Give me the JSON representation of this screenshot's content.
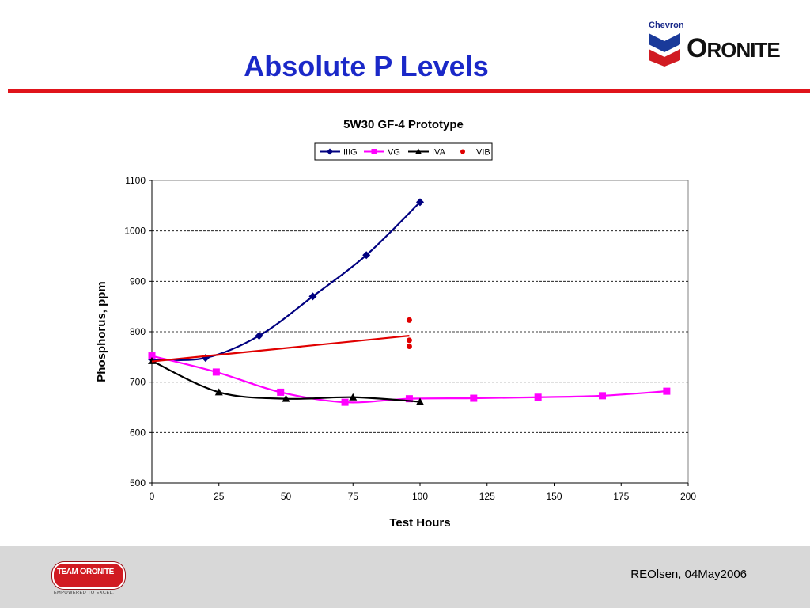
{
  "slide": {
    "title": "Absolute P Levels",
    "footer_credit": "REOlsen, 04May2006"
  },
  "logos": {
    "chevron_word": "Chevron",
    "oronite_first": "O",
    "oronite_rest": "RONITE",
    "team_first": "TEAM",
    "team_second_first": "O",
    "team_second_rest": "RONITE",
    "team_tagline": "EMPOWERED TO EXCEL.",
    "chevron_colors": [
      "#1a3a9a",
      "#d11b22"
    ]
  },
  "chart_data": {
    "type": "line",
    "title": "5W30 GF-4 Prototype",
    "xlabel": "Test Hours",
    "ylabel": "Phosphorus, ppm",
    "xlim": [
      0,
      200
    ],
    "ylim": [
      500,
      1100
    ],
    "xticks": [
      0,
      25,
      50,
      75,
      100,
      125,
      150,
      175,
      200
    ],
    "yticks": [
      500,
      600,
      700,
      800,
      900,
      1000,
      1100
    ],
    "grid": "horizontal-dashed",
    "legend": "top-center",
    "series": [
      {
        "name": "IIIG",
        "color": "#000080",
        "marker": "diamond",
        "points": [
          [
            0,
            745
          ],
          [
            20,
            748
          ],
          [
            40,
            792
          ],
          [
            60,
            870
          ],
          [
            80,
            952
          ],
          [
            100,
            1057
          ]
        ]
      },
      {
        "name": "VG",
        "color": "#ff00ff",
        "marker": "square",
        "points": [
          [
            0,
            752
          ],
          [
            24,
            720
          ],
          [
            48,
            680
          ],
          [
            72,
            660
          ],
          [
            96,
            667
          ],
          [
            120,
            668
          ],
          [
            144,
            670
          ],
          [
            168,
            673
          ],
          [
            192,
            682
          ]
        ]
      },
      {
        "name": "IVA",
        "color": "#000000",
        "marker": "triangle",
        "points": [
          [
            0,
            742
          ],
          [
            25,
            680
          ],
          [
            50,
            667
          ],
          [
            75,
            670
          ],
          [
            100,
            661
          ]
        ]
      },
      {
        "name": "VIB",
        "color": "#e00000",
        "marker": "circle",
        "line": false,
        "points": [
          [
            96,
            823
          ],
          [
            96,
            783
          ],
          [
            96,
            771
          ]
        ]
      },
      {
        "color": "#e00000",
        "marker": "none",
        "line_type": "trend",
        "points": [
          [
            0,
            741
          ],
          [
            96,
            792
          ]
        ]
      }
    ]
  }
}
